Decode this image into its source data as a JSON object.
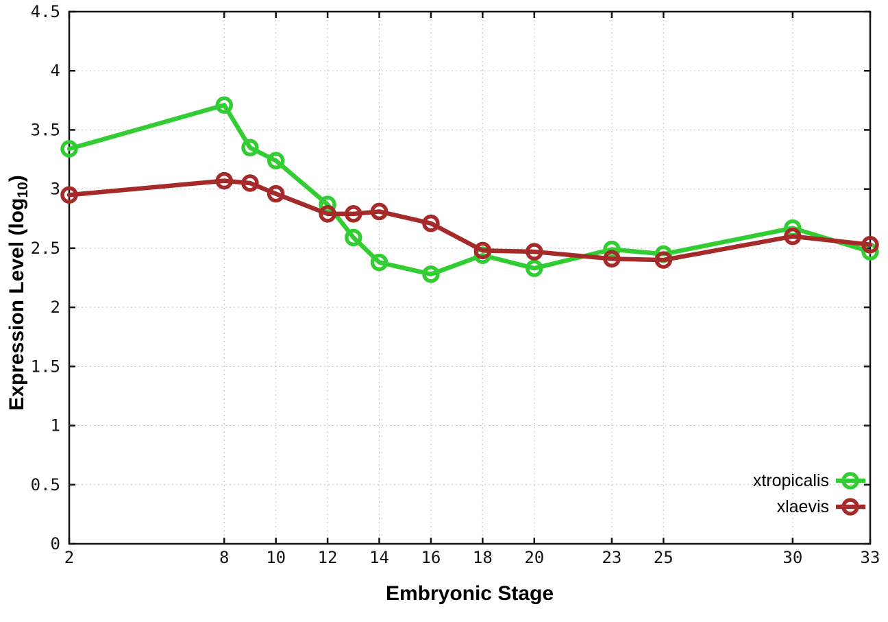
{
  "figure": {
    "background": "#ffffff",
    "axis_color": "#141414",
    "grid_color": "#c2c2c2"
  },
  "chart_data": {
    "type": "line",
    "title": "",
    "xlabel": "Embryonic Stage",
    "ylabel_prefix": "Expression Level (log",
    "ylabel_sub": "10",
    "ylabel_suffix": ")",
    "xlim": [
      2,
      33
    ],
    "ylim": [
      0,
      4.5
    ],
    "xticks": [
      2,
      8,
      10,
      12,
      14,
      16,
      18,
      20,
      23,
      25,
      30,
      33
    ],
    "yticks": [
      0,
      0.5,
      1,
      1.5,
      2,
      2.5,
      3,
      3.5,
      4,
      4.5
    ],
    "ytick_labels": [
      "0",
      "0.5",
      "1",
      "1.5",
      "2",
      "2.5",
      "3",
      "3.5",
      "4",
      "4.5"
    ],
    "grid": true,
    "marker": "open-circle",
    "legend_position": "inside-bottom-right",
    "x": [
      2,
      8,
      9,
      10,
      12,
      13,
      14,
      16,
      18,
      20,
      23,
      25,
      30,
      33
    ],
    "series": [
      {
        "name": "xtropicalis",
        "color": "#32cd32",
        "values": [
          3.34,
          3.71,
          3.35,
          3.24,
          2.87,
          2.59,
          2.38,
          2.28,
          2.44,
          2.33,
          2.49,
          2.45,
          2.67,
          2.47
        ]
      },
      {
        "name": "xlaevis",
        "color": "#a52a2a",
        "values": [
          2.95,
          3.07,
          3.05,
          2.96,
          2.79,
          2.79,
          2.81,
          2.71,
          2.48,
          2.47,
          2.41,
          2.4,
          2.6,
          2.53
        ]
      }
    ]
  }
}
